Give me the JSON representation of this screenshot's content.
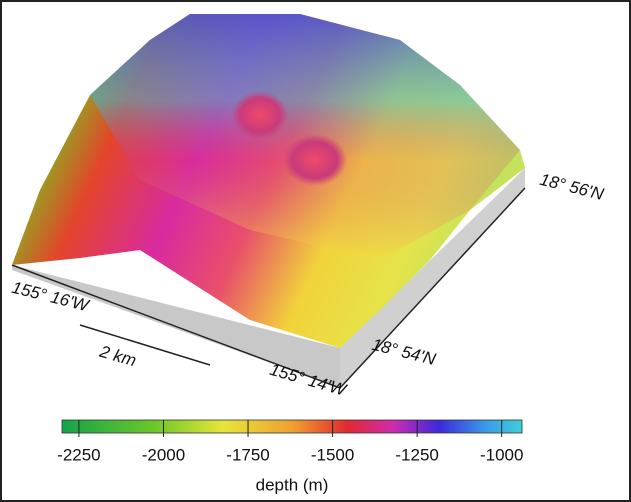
{
  "map": {
    "labels": {
      "lon_west": "155° 16'W",
      "lon_east": "155° 14'W",
      "lat_south": "18° 54'N",
      "lat_north": "18° 56'N"
    },
    "scale_bar": "2 km"
  },
  "colorbar": {
    "label": "depth (m)",
    "range": [
      -2300,
      -940
    ],
    "ticks": [
      -2250,
      -2000,
      -1750,
      -1500,
      -1250,
      -1000
    ]
  }
}
